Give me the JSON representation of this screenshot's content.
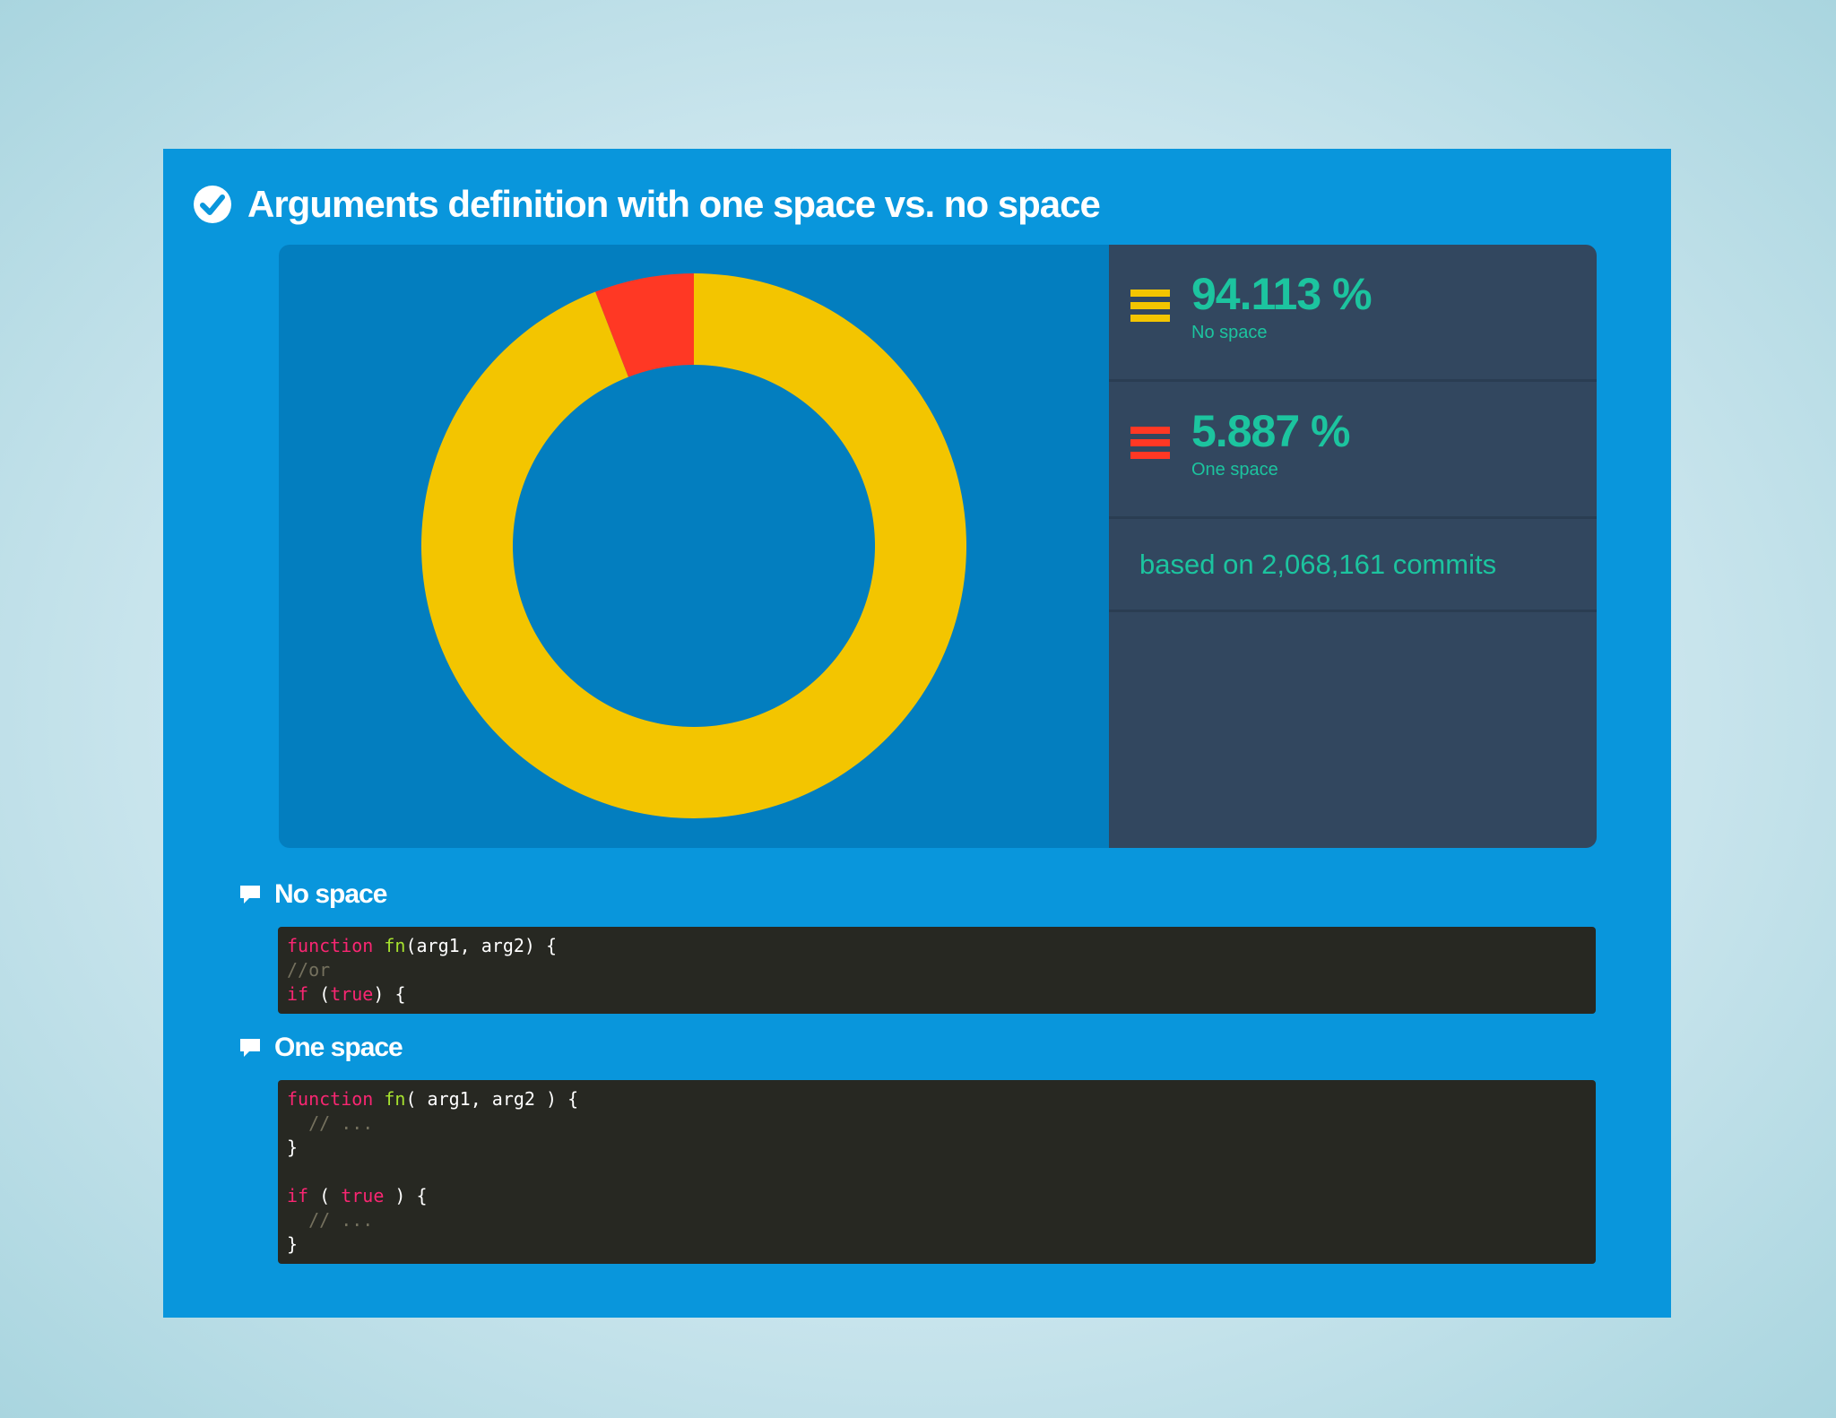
{
  "header": {
    "title": "Arguments definition with one space vs. no space",
    "icon": "check-circle-icon"
  },
  "chart_data": {
    "type": "pie",
    "variant": "donut",
    "slices": [
      {
        "name": "No space",
        "value": 94.113,
        "color": "#f3c500"
      },
      {
        "name": "One space",
        "value": 5.887,
        "color": "#ff3824"
      }
    ]
  },
  "stats": {
    "items": [
      {
        "value": "94.113 %",
        "label": "No space",
        "color": "#f3c500",
        "icon": "legend-bars-icon"
      },
      {
        "value": "5.887 %",
        "label": "One space",
        "color": "#ff3824",
        "icon": "legend-bars-icon"
      }
    ],
    "basis": "based on 2,068,161 commits"
  },
  "sections": [
    {
      "title": "No space",
      "icon": "comment-icon",
      "code": [
        [
          [
            "kw",
            "function"
          ],
          [
            "t",
            " "
          ],
          [
            "fn",
            "fn"
          ],
          [
            "t",
            "(arg1, arg2) {"
          ]
        ],
        [
          [
            "cm",
            "//or"
          ]
        ],
        [
          [
            "kw",
            "if"
          ],
          [
            "t",
            " ("
          ],
          [
            "kw",
            "true"
          ],
          [
            "t",
            ") {"
          ]
        ]
      ]
    },
    {
      "title": "One space",
      "icon": "comment-icon",
      "code": [
        [
          [
            "kw",
            "function"
          ],
          [
            "t",
            " "
          ],
          [
            "fn",
            "fn"
          ],
          [
            "t",
            "( arg1, arg2 ) {"
          ]
        ],
        [
          [
            "cm",
            "  // ..."
          ]
        ],
        [
          [
            "t",
            "}"
          ]
        ],
        [
          [
            "t",
            ""
          ]
        ],
        [
          [
            "kw",
            "if"
          ],
          [
            "t",
            " ( "
          ],
          [
            "kw",
            "true"
          ],
          [
            "t",
            " ) {"
          ]
        ],
        [
          [
            "cm",
            "  // ..."
          ]
        ],
        [
          [
            "t",
            "}"
          ]
        ]
      ]
    }
  ],
  "colors": {
    "card": "#0996dc",
    "chart_bg": "#037ebf",
    "stats_bg": "#32475f",
    "accent_text": "#1cc49f"
  }
}
